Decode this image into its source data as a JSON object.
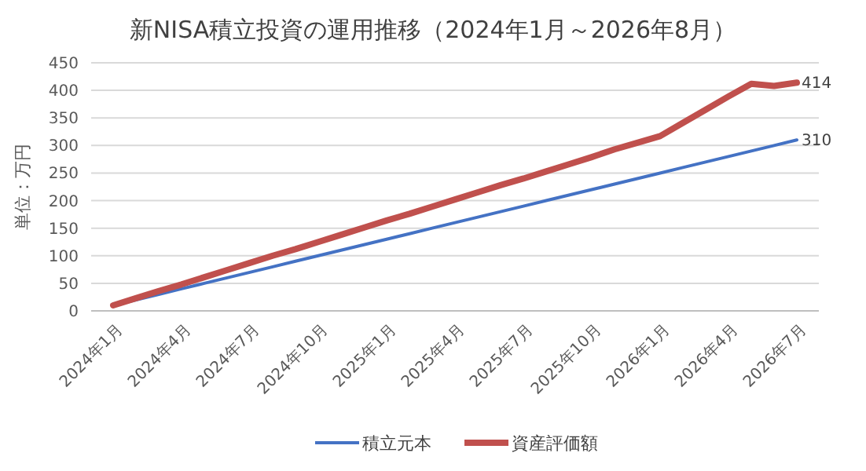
{
  "chart_data": {
    "type": "line",
    "title": "新NISA積立投資の運用推移（2024年1月～2026年8月）",
    "ylabel": "単位：万円",
    "categories": [
      "2024年1月",
      null,
      null,
      "2024年4月",
      null,
      null,
      "2024年7月",
      null,
      null,
      "2024年10月",
      null,
      null,
      "2025年1月",
      null,
      null,
      "2025年4月",
      null,
      null,
      "2025年7月",
      null,
      null,
      "2025年10月",
      null,
      null,
      "2026年1月",
      null,
      null,
      "2026年4月",
      null,
      null,
      "2026年7月"
    ],
    "series": [
      {
        "name": "積立元本",
        "color": "#4472c4",
        "values": [
          10,
          20,
          30,
          40,
          50,
          60,
          70,
          80,
          90,
          100,
          110,
          120,
          130,
          140,
          150,
          160,
          170,
          180,
          190,
          200,
          210,
          220,
          230,
          240,
          250,
          260,
          270,
          280,
          290,
          300,
          310
        ],
        "value_labels": [
          null,
          null,
          null,
          null,
          null,
          null,
          null,
          null,
          null,
          null,
          null,
          null,
          null,
          null,
          null,
          null,
          null,
          null,
          null,
          null,
          null,
          null,
          null,
          null,
          null,
          null,
          null,
          null,
          null,
          null,
          "310"
        ]
      },
      {
        "name": "資産評価額",
        "color": "#c0504d",
        "values": [
          10,
          23,
          36,
          48,
          61,
          74,
          87,
          100,
          112,
          125,
          138,
          151,
          164,
          176,
          189,
          202,
          215,
          228,
          240,
          253,
          266,
          279,
          293,
          305,
          317,
          341,
          365,
          389,
          412,
          408,
          414
        ],
        "value_labels": [
          null,
          null,
          null,
          null,
          null,
          null,
          null,
          null,
          null,
          null,
          null,
          null,
          null,
          null,
          null,
          null,
          null,
          null,
          null,
          null,
          null,
          null,
          null,
          null,
          null,
          null,
          null,
          null,
          null,
          null,
          "414"
        ]
      }
    ],
    "ylim": [
      0,
      450
    ],
    "yticks": [
      0,
      50,
      100,
      150,
      200,
      250,
      300,
      350,
      400,
      450
    ],
    "grid": "y",
    "legend": "bottom",
    "marker": "none",
    "line_style": "solid"
  }
}
